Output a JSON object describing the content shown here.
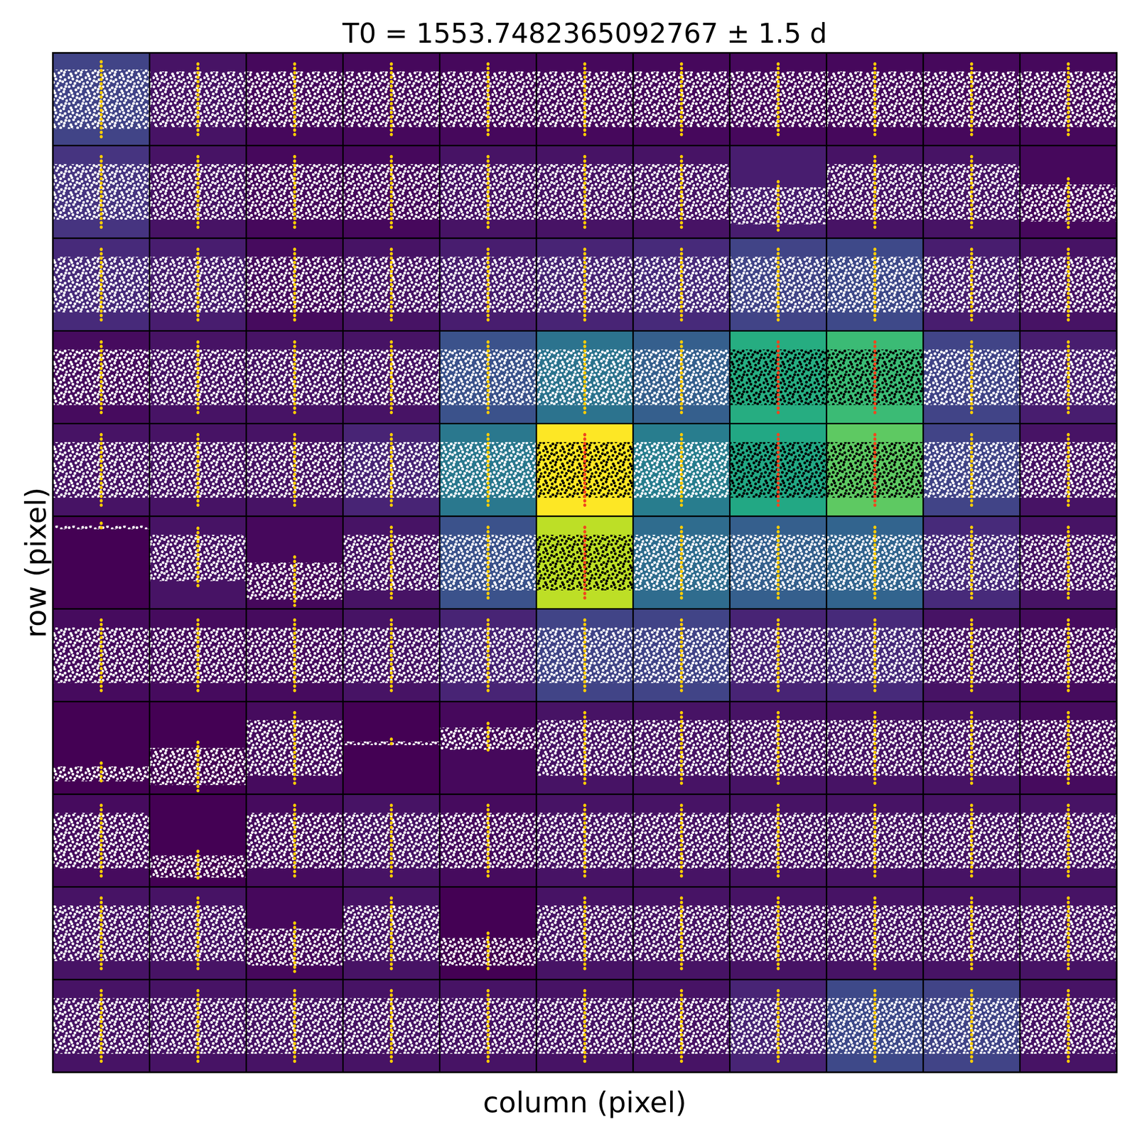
{
  "chart_data": {
    "type": "pixel_light_curves",
    "title": "T0 = 1553.7482365092767 ± 1.5 d",
    "x_label": "column (pixel)",
    "y_label": "row (pixel)",
    "tick_labels": false,
    "color_range": [
      0,
      1
    ],
    "cell_xlim": [
      0,
      1
    ],
    "band_range": [
      0,
      1
    ],
    "transit_x": 0.5,
    "point_color": "#ffffff",
    "transit_color": "#ffcc00",
    "aperture_point_color": "#000000",
    "aperture_transit_color": "#f0461e",
    "aperture": [
      [
        3,
        7
      ],
      [
        3,
        8
      ],
      [
        4,
        5
      ],
      [
        4,
        7
      ],
      [
        4,
        8
      ],
      [
        5,
        5
      ]
    ],
    "cells": [
      [
        0.2,
        0.05,
        0.02,
        0.02,
        0.02,
        0.02,
        0.02,
        0.02,
        0.02,
        0.02,
        0.02
      ],
      [
        0.15,
        0.05,
        0.02,
        0.02,
        0.05,
        0.05,
        0.05,
        0.08,
        0.05,
        0.05,
        0.02
      ],
      [
        0.12,
        0.08,
        0.03,
        0.05,
        0.08,
        0.1,
        0.12,
        0.2,
        0.22,
        0.08,
        0.05
      ],
      [
        0.03,
        0.05,
        0.05,
        0.05,
        0.25,
        0.38,
        0.3,
        0.62,
        0.68,
        0.2,
        0.08
      ],
      [
        0.05,
        0.05,
        0.05,
        0.1,
        0.4,
        1.0,
        0.42,
        0.6,
        0.75,
        0.2,
        0.05
      ],
      [
        0.0,
        0.05,
        0.02,
        0.05,
        0.25,
        0.9,
        0.35,
        0.3,
        0.32,
        0.12,
        0.05
      ],
      [
        0.03,
        0.03,
        0.03,
        0.05,
        0.1,
        0.2,
        0.2,
        0.1,
        0.12,
        0.05,
        0.03
      ],
      [
        0.0,
        0.0,
        0.03,
        0.0,
        0.02,
        0.05,
        0.05,
        0.05,
        0.05,
        0.05,
        0.03
      ],
      [
        0.03,
        0.0,
        0.03,
        0.05,
        0.03,
        0.05,
        0.05,
        0.05,
        0.05,
        0.05,
        0.05
      ],
      [
        0.05,
        0.05,
        0.02,
        0.05,
        0.0,
        0.05,
        0.05,
        0.05,
        0.05,
        0.05,
        0.05
      ],
      [
        0.05,
        0.05,
        0.05,
        0.05,
        0.05,
        0.05,
        0.05,
        0.1,
        0.22,
        0.2,
        0.05
      ]
    ],
    "band": [
      [
        [
          0.5,
          0.32
        ],
        [
          0.5,
          0.3
        ],
        [
          0.5,
          0.3
        ],
        [
          0.5,
          0.3
        ],
        [
          0.5,
          0.3
        ],
        [
          0.5,
          0.3
        ],
        [
          0.5,
          0.3
        ],
        [
          0.5,
          0.3
        ],
        [
          0.5,
          0.3
        ],
        [
          0.5,
          0.3
        ],
        [
          0.5,
          0.3
        ]
      ],
      [
        [
          0.5,
          0.3
        ],
        [
          0.5,
          0.3
        ],
        [
          0.5,
          0.3
        ],
        [
          0.5,
          0.3
        ],
        [
          0.5,
          0.3
        ],
        [
          0.5,
          0.3
        ],
        [
          0.5,
          0.3
        ],
        [
          0.35,
          0.2
        ],
        [
          0.5,
          0.3
        ],
        [
          0.5,
          0.3
        ],
        [
          0.38,
          0.2
        ]
      ],
      [
        [
          0.5,
          0.3
        ],
        [
          0.5,
          0.3
        ],
        [
          0.5,
          0.3
        ],
        [
          0.5,
          0.3
        ],
        [
          0.5,
          0.3
        ],
        [
          0.5,
          0.3
        ],
        [
          0.5,
          0.3
        ],
        [
          0.5,
          0.3
        ],
        [
          0.5,
          0.3
        ],
        [
          0.5,
          0.3
        ],
        [
          0.5,
          0.3
        ]
      ],
      [
        [
          0.5,
          0.3
        ],
        [
          0.5,
          0.3
        ],
        [
          0.5,
          0.3
        ],
        [
          0.5,
          0.3
        ],
        [
          0.5,
          0.3
        ],
        [
          0.5,
          0.3
        ],
        [
          0.5,
          0.3
        ],
        [
          0.5,
          0.3
        ],
        [
          0.5,
          0.3
        ],
        [
          0.5,
          0.3
        ],
        [
          0.5,
          0.3
        ]
      ],
      [
        [
          0.5,
          0.3
        ],
        [
          0.5,
          0.3
        ],
        [
          0.5,
          0.3
        ],
        [
          0.5,
          0.3
        ],
        [
          0.5,
          0.3
        ],
        [
          0.5,
          0.3
        ],
        [
          0.5,
          0.3
        ],
        [
          0.5,
          0.3
        ],
        [
          0.5,
          0.3
        ],
        [
          0.5,
          0.3
        ],
        [
          0.5,
          0.3
        ]
      ],
      [
        [
          0.88,
          0.02
        ],
        [
          0.55,
          0.25
        ],
        [
          0.3,
          0.2
        ],
        [
          0.5,
          0.3
        ],
        [
          0.5,
          0.3
        ],
        [
          0.5,
          0.3
        ],
        [
          0.5,
          0.3
        ],
        [
          0.5,
          0.3
        ],
        [
          0.5,
          0.3
        ],
        [
          0.5,
          0.3
        ],
        [
          0.5,
          0.3
        ]
      ],
      [
        [
          0.5,
          0.3
        ],
        [
          0.5,
          0.3
        ],
        [
          0.5,
          0.3
        ],
        [
          0.5,
          0.3
        ],
        [
          0.5,
          0.3
        ],
        [
          0.5,
          0.3
        ],
        [
          0.5,
          0.3
        ],
        [
          0.5,
          0.3
        ],
        [
          0.5,
          0.3
        ],
        [
          0.5,
          0.3
        ],
        [
          0.5,
          0.3
        ]
      ],
      [
        [
          0.22,
          0.08
        ],
        [
          0.3,
          0.2
        ],
        [
          0.5,
          0.3
        ],
        [
          0.55,
          0.02
        ],
        [
          0.6,
          0.12
        ],
        [
          0.5,
          0.3
        ],
        [
          0.5,
          0.3
        ],
        [
          0.5,
          0.3
        ],
        [
          0.5,
          0.3
        ],
        [
          0.5,
          0.3
        ],
        [
          0.5,
          0.3
        ]
      ],
      [
        [
          0.5,
          0.3
        ],
        [
          0.22,
          0.12
        ],
        [
          0.5,
          0.3
        ],
        [
          0.5,
          0.3
        ],
        [
          0.5,
          0.3
        ],
        [
          0.5,
          0.3
        ],
        [
          0.5,
          0.3
        ],
        [
          0.5,
          0.3
        ],
        [
          0.5,
          0.3
        ],
        [
          0.5,
          0.3
        ],
        [
          0.5,
          0.3
        ]
      ],
      [
        [
          0.5,
          0.3
        ],
        [
          0.5,
          0.3
        ],
        [
          0.35,
          0.2
        ],
        [
          0.5,
          0.3
        ],
        [
          0.3,
          0.15
        ],
        [
          0.5,
          0.3
        ],
        [
          0.5,
          0.3
        ],
        [
          0.5,
          0.3
        ],
        [
          0.5,
          0.3
        ],
        [
          0.5,
          0.3
        ],
        [
          0.5,
          0.3
        ]
      ],
      [
        [
          0.5,
          0.3
        ],
        [
          0.5,
          0.3
        ],
        [
          0.5,
          0.3
        ],
        [
          0.5,
          0.3
        ],
        [
          0.5,
          0.3
        ],
        [
          0.5,
          0.3
        ],
        [
          0.5,
          0.3
        ],
        [
          0.5,
          0.3
        ],
        [
          0.5,
          0.3
        ],
        [
          0.5,
          0.3
        ],
        [
          0.5,
          0.3
        ]
      ]
    ]
  }
}
